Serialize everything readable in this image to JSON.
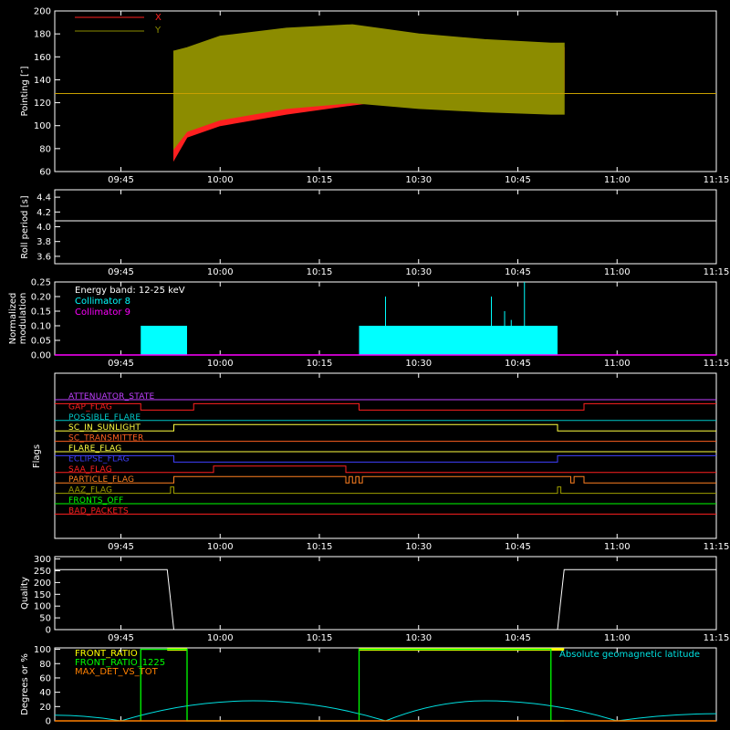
{
  "colors": {
    "X": "#ff2020",
    "Y": "#8c8c00",
    "coll8": "#00ffff",
    "coll9": "#ff00ff",
    "front_ratio": "#ffff00",
    "front_ratio_1225": "#00ff00",
    "max_det": "#ff8000",
    "latitude": "#00e0e0"
  },
  "time_ticks": [
    "09:45",
    "10:00",
    "10:15",
    "10:30",
    "10:45",
    "11:00",
    "11:15"
  ],
  "panels": {
    "pointing": {
      "ylabel": "Pointing [″]",
      "yticks": [
        "60",
        "80",
        "100",
        "120",
        "140",
        "160",
        "180",
        "200"
      ],
      "legend": [
        {
          "name": "X",
          "color": "#ff2020"
        },
        {
          "name": "Y",
          "color": "#8c8c00"
        }
      ]
    },
    "roll": {
      "ylabel": "Roll period [s]",
      "yticks": [
        "3.6",
        "3.8",
        "4.0",
        "4.2",
        "4.4"
      ]
    },
    "modulation": {
      "ylabel_line1": "Normalized",
      "ylabel_line2": "modulation",
      "yticks": [
        "0.00",
        "0.05",
        "0.10",
        "0.15",
        "0.20",
        "0.25"
      ],
      "energy_band": "Energy band: 12-25 keV",
      "coll8": "Collimator 8",
      "coll9": "Collimator 9"
    },
    "flags": {
      "ylabel": "Flags",
      "items": [
        {
          "name": "ATTENUATOR_STATE",
          "color": "#c040ff"
        },
        {
          "name": "GAP_FLAG",
          "color": "#ff2020"
        },
        {
          "name": "POSSIBLE_FLARE",
          "color": "#00c8c8"
        },
        {
          "name": "SC_IN_SUNLIGHT",
          "color": "#ffff40"
        },
        {
          "name": "SC_TRANSMITTER",
          "color": "#ff6020"
        },
        {
          "name": "FLARE_FLAG",
          "color": "#ffff40"
        },
        {
          "name": "ECLIPSE_FLAG",
          "color": "#4040ff"
        },
        {
          "name": "SAA_FLAG",
          "color": "#ff2020"
        },
        {
          "name": "PARTICLE_FLAG",
          "color": "#ff8020"
        },
        {
          "name": "AAZ_FLAG",
          "color": "#a0a000"
        },
        {
          "name": "FRONTS_OFF",
          "color": "#00ff00"
        },
        {
          "name": "BAD_PACKETS",
          "color": "#ff2020"
        }
      ]
    },
    "quality": {
      "ylabel": "Quality",
      "yticks": [
        "0",
        "50",
        "100",
        "150",
        "200",
        "250",
        "300"
      ]
    },
    "bottom": {
      "ylabel": "Degrees or %",
      "yticks": [
        "0",
        "20",
        "40",
        "60",
        "80",
        "100"
      ],
      "legend_front_ratio": "FRONT_RATIO",
      "legend_front_ratio_1225": "FRONT_RATIO_1225",
      "legend_max_det": "MAX_DET_VS_TOT",
      "latitude_label": "Absolute geomagnetic latitude"
    }
  },
  "chart_data": [
    {
      "type": "line",
      "ylabel": "Pointing [″]",
      "ylim": [
        60,
        200
      ],
      "xlim": [
        "09:35",
        "11:15"
      ],
      "series": [
        {
          "name": "X",
          "x": [
            "09:53",
            "09:55",
            "10:00",
            "10:10",
            "10:20",
            "10:30",
            "10:40",
            "10:50",
            "10:52"
          ],
          "y_max": [
            165,
            160,
            170,
            178,
            180,
            175,
            168,
            165,
            168
          ],
          "y_min": [
            70,
            90,
            100,
            110,
            118,
            125,
            128,
            128,
            130
          ]
        },
        {
          "name": "Y",
          "x": [
            "09:53",
            "09:55",
            "10:00",
            "10:10",
            "10:20",
            "10:30",
            "10:40",
            "10:50",
            "10:52"
          ],
          "y_max": [
            165,
            168,
            178,
            185,
            188,
            180,
            175,
            172,
            172
          ],
          "y_min": [
            80,
            95,
            105,
            115,
            120,
            115,
            112,
            110,
            110
          ]
        }
      ],
      "reference_line": 128
    },
    {
      "type": "line",
      "ylabel": "Roll period [s]",
      "ylim": [
        3.5,
        4.5
      ],
      "series": [
        {
          "name": "roll",
          "x": [
            "09:35",
            "11:15"
          ],
          "y": [
            4.08,
            4.08
          ]
        }
      ]
    },
    {
      "type": "bar",
      "ylim": [
        0,
        0.25
      ],
      "series": [
        {
          "name": "Collimator 8",
          "segments": [
            [
              "09:48",
              "09:55",
              0.1
            ],
            [
              "10:21",
              "10:51",
              0.1
            ]
          ],
          "spikes": [
            [
              "10:25",
              0.2
            ],
            [
              "10:41",
              0.2
            ],
            [
              "10:43",
              0.15
            ],
            [
              "10:44",
              0.12
            ],
            [
              "10:46",
              0.25
            ]
          ]
        },
        {
          "name": "Collimator 9",
          "value": 0.0
        }
      ]
    },
    {
      "type": "line",
      "ylim": [
        0,
        300
      ],
      "series": [
        {
          "name": "Quality",
          "x": [
            "09:35",
            "09:52",
            "09:53",
            "10:51",
            "10:52",
            "11:15"
          ],
          "y": [
            255,
            255,
            0,
            0,
            255,
            255
          ]
        }
      ]
    },
    {
      "type": "line",
      "ylim": [
        0,
        100
      ],
      "series": [
        {
          "name": "Absolute geomagnetic latitude",
          "x": [
            "09:35",
            "09:45",
            "10:05",
            "10:25",
            "10:40",
            "11:00",
            "11:15"
          ],
          "y": [
            8,
            0,
            28,
            0,
            28,
            0,
            10
          ]
        },
        {
          "name": "FRONT_RATIO",
          "x": [
            "09:52",
            "09:55",
            "10:21",
            "10:52"
          ],
          "y": [
            100,
            100,
            100,
            100
          ]
        },
        {
          "name": "FRONT_RATIO_1225",
          "x": [
            "09:48",
            "09:48",
            "09:55",
            "09:55",
            "10:21",
            "10:21",
            "10:50",
            "10:50",
            "10:52"
          ],
          "y": [
            0,
            100,
            100,
            0,
            0,
            100,
            100,
            0,
            0
          ]
        },
        {
          "name": "MAX_DET_VS_TOT",
          "x": [
            "09:35",
            "11:15"
          ],
          "y": [
            0,
            0
          ]
        }
      ]
    }
  ]
}
